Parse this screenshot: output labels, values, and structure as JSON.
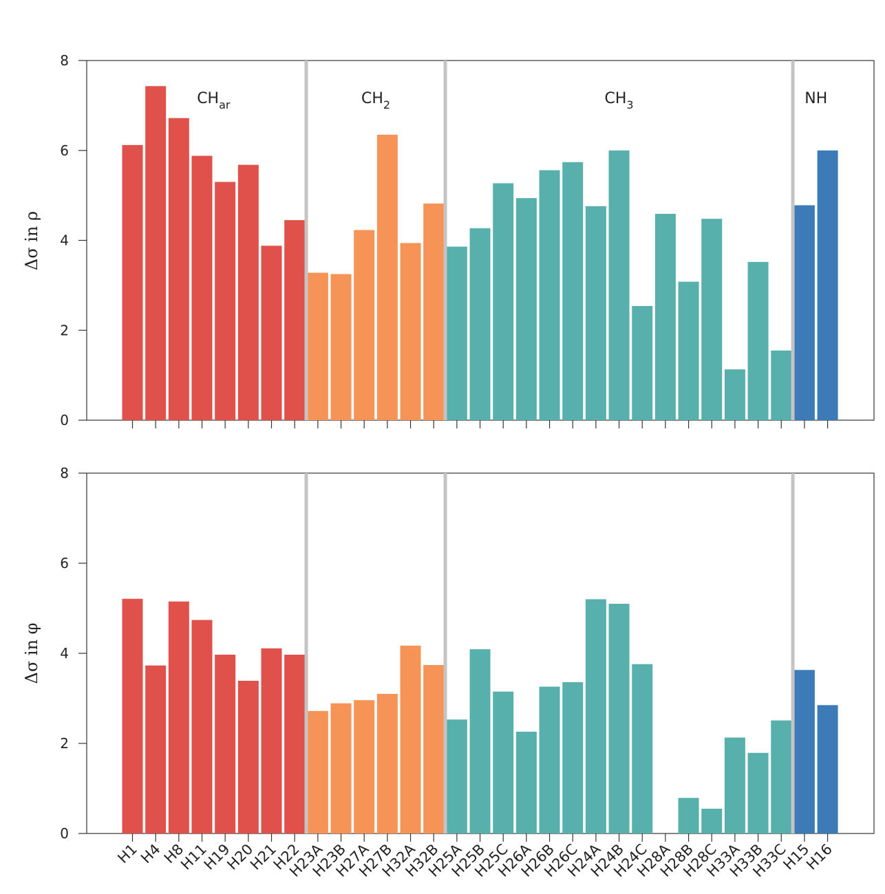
{
  "chart_data": [
    {
      "type": "bar",
      "panel": "top",
      "ylabel": "Δσ in ρ",
      "ylim": [
        0,
        8
      ],
      "yticks": [
        0,
        2,
        4,
        6,
        8
      ],
      "categories": [
        "H1",
        "H4",
        "H8",
        "H11",
        "H19",
        "H20",
        "H21",
        "H22",
        "H23A",
        "H23B",
        "H27A",
        "H27B",
        "H32A",
        "H32B",
        "H25A",
        "H25B",
        "H25C",
        "H26A",
        "H26B",
        "H26C",
        "H24A",
        "H24B",
        "H24C",
        "H28A",
        "H28B",
        "H28C",
        "H33A",
        "H33B",
        "H33C",
        "H15",
        "H16"
      ],
      "values": [
        6.12,
        7.43,
        6.72,
        5.88,
        5.3,
        5.68,
        3.88,
        4.45,
        3.28,
        3.25,
        4.23,
        6.35,
        3.94,
        4.82,
        3.86,
        4.27,
        5.27,
        4.94,
        5.56,
        5.74,
        4.76,
        6.0,
        2.54,
        4.59,
        3.08,
        4.48,
        1.13,
        3.52,
        1.55,
        4.78,
        6.0
      ],
      "groups": [
        {
          "name": "CH",
          "sub": "ar",
          "start": 0,
          "end": 7,
          "color": "#e0514b"
        },
        {
          "name": "CH",
          "sub": "2",
          "start": 8,
          "end": 13,
          "color": "#f69457"
        },
        {
          "name": "CH",
          "sub": "3",
          "start": 14,
          "end": 28,
          "color": "#58b0ad"
        },
        {
          "name": "NH",
          "sub": "",
          "start": 29,
          "end": 30,
          "color": "#3d7ab8"
        }
      ]
    },
    {
      "type": "bar",
      "panel": "bottom",
      "ylabel": "Δσ in φ",
      "ylim": [
        0,
        8
      ],
      "yticks": [
        0,
        2,
        4,
        6,
        8
      ],
      "categories": [
        "H1",
        "H4",
        "H8",
        "H11",
        "H19",
        "H20",
        "H21",
        "H22",
        "H23A",
        "H23B",
        "H27A",
        "H27B",
        "H32A",
        "H32B",
        "H25A",
        "H25B",
        "H25C",
        "H26A",
        "H26B",
        "H26C",
        "H24A",
        "H24B",
        "H24C",
        "H28A",
        "H28B",
        "H28C",
        "H33A",
        "H33B",
        "H33C",
        "H15",
        "H16"
      ],
      "values": [
        5.21,
        3.73,
        5.15,
        4.74,
        3.97,
        3.39,
        4.11,
        3.97,
        2.72,
        2.89,
        2.96,
        3.1,
        4.17,
        3.74,
        2.53,
        4.09,
        3.15,
        2.26,
        3.26,
        3.36,
        5.2,
        5.1,
        3.76,
        0,
        0.79,
        0.55,
        2.13,
        1.79,
        2.51,
        3.63,
        2.85
      ],
      "groups": [
        {
          "start": 0,
          "end": 7,
          "color": "#e0514b"
        },
        {
          "start": 8,
          "end": 13,
          "color": "#f69457"
        },
        {
          "start": 14,
          "end": 28,
          "color": "#58b0ad"
        },
        {
          "start": 29,
          "end": 30,
          "color": "#3d7ab8"
        }
      ]
    }
  ]
}
